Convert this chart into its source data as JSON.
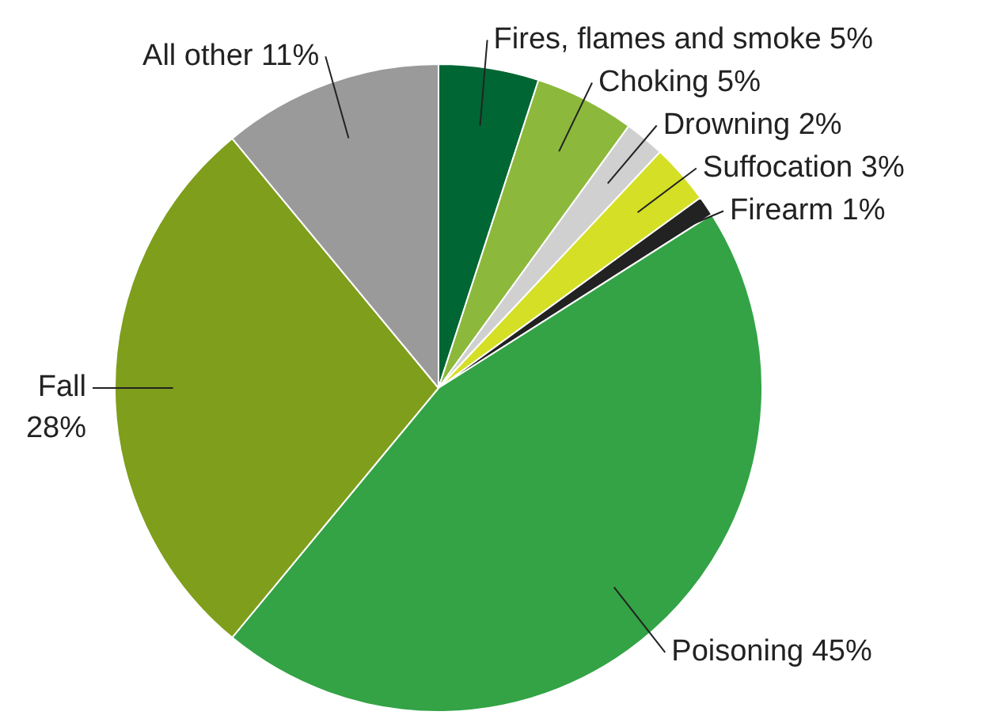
{
  "chart_data": {
    "type": "pie",
    "categories": [
      "Fires, flames and smoke",
      "Choking",
      "Drowning",
      "Suffocation",
      "Firearm",
      "Poisoning",
      "Fall",
      "All other"
    ],
    "values": [
      5,
      5,
      2,
      3,
      1,
      45,
      28,
      11
    ],
    "value_labels": [
      "5%",
      "5%",
      "2%",
      "3%",
      "1%",
      "45%",
      "28%",
      "11%"
    ],
    "colors": [
      "#006633",
      "#8cb83c",
      "#d0d0d0",
      "#d4df26",
      "#222222",
      "#33a345",
      "#7f9e1c",
      "#9a9a9a"
    ],
    "legend": false
  }
}
